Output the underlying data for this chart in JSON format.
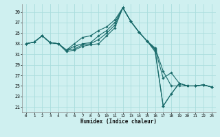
{
  "xlabel": "Humidex (Indice chaleur)",
  "background_color": "#cff0f0",
  "grid_color": "#aadddd",
  "line_color": "#1a6b6b",
  "xlim": [
    -0.5,
    23.5
  ],
  "ylim": [
    20.0,
    40.5
  ],
  "yticks": [
    21,
    23,
    25,
    27,
    29,
    31,
    33,
    35,
    37,
    39
  ],
  "xticks": [
    0,
    1,
    2,
    3,
    4,
    5,
    6,
    7,
    8,
    9,
    10,
    11,
    12,
    13,
    14,
    15,
    16,
    17,
    18,
    19,
    20,
    21,
    22,
    23
  ],
  "series": [
    [
      33.0,
      33.3,
      34.5,
      33.2,
      33.0,
      31.8,
      33.0,
      34.2,
      34.5,
      35.5,
      36.2,
      37.5,
      39.8,
      37.2,
      35.2,
      33.5,
      32.2,
      27.8,
      25.0,
      25.0,
      25.0,
      25.0,
      25.2,
      24.8
    ],
    [
      33.0,
      33.3,
      34.5,
      33.2,
      33.0,
      31.8,
      32.5,
      33.0,
      33.2,
      34.5,
      35.5,
      37.0,
      39.8,
      37.2,
      35.2,
      33.5,
      32.0,
      26.5,
      27.5,
      25.5,
      25.0,
      25.0,
      25.2,
      24.8
    ],
    [
      33.0,
      33.3,
      34.5,
      33.2,
      33.0,
      31.8,
      32.0,
      32.8,
      33.0,
      33.8,
      35.0,
      36.5,
      39.8,
      37.2,
      35.2,
      33.5,
      31.8,
      21.2,
      23.5,
      25.5,
      25.0,
      25.0,
      25.2,
      24.8
    ],
    [
      33.0,
      33.3,
      34.5,
      33.2,
      33.0,
      31.5,
      31.8,
      32.5,
      32.8,
      33.0,
      34.5,
      36.0,
      39.8,
      37.2,
      35.2,
      33.5,
      31.5,
      21.2,
      23.5,
      25.5,
      25.0,
      25.0,
      25.2,
      24.8
    ]
  ]
}
